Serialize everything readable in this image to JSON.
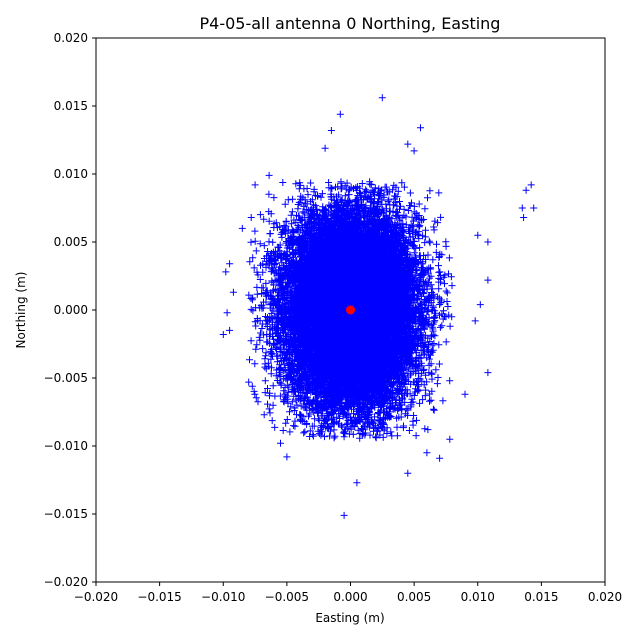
{
  "chart_data": {
    "type": "scatter",
    "title": "P4-05-all antenna 0 Northing, Easting",
    "xlabel": "Easting (m)",
    "ylabel": "Northing (m)",
    "xlim": [
      -0.02,
      0.02
    ],
    "ylim": [
      -0.02,
      0.02
    ],
    "xticks": [
      "−0.020",
      "−0.015",
      "−0.010",
      "−0.005",
      "0.000",
      "0.005",
      "0.010",
      "0.015",
      "0.020"
    ],
    "yticks": [
      "−0.020",
      "−0.015",
      "−0.010",
      "−0.005",
      "0.000",
      "0.005",
      "0.010",
      "0.015",
      "0.020"
    ],
    "grid": false,
    "series": [
      {
        "marker": "+",
        "color": "#0000ff",
        "cloud": {
          "center": [
            0.0,
            0.0
          ],
          "std": [
            0.0025,
            0.0035
          ],
          "count": 20000
        },
        "outliers": [
          [
            0.0025,
            0.0156
          ],
          [
            -0.0008,
            0.0144
          ],
          [
            0.0055,
            0.0134
          ],
          [
            -0.0015,
            0.0132
          ],
          [
            0.0045,
            0.0122
          ],
          [
            0.005,
            0.0117
          ],
          [
            -0.002,
            0.0119
          ],
          [
            -0.0064,
            0.0099
          ],
          [
            -0.0075,
            0.0092
          ],
          [
            0.0138,
            0.0088
          ],
          [
            0.0142,
            0.0092
          ],
          [
            0.0135,
            0.0075
          ],
          [
            0.0144,
            0.0075
          ],
          [
            0.0136,
            0.0068
          ],
          [
            0.0108,
            0.005
          ],
          [
            0.01,
            0.0055
          ],
          [
            0.0108,
            0.0022
          ],
          [
            0.0102,
            0.0004
          ],
          [
            0.0098,
            -0.0008
          ],
          [
            0.0108,
            -0.0046
          ],
          [
            -0.0098,
            0.0028
          ],
          [
            -0.0095,
            0.0034
          ],
          [
            -0.01,
            -0.0018
          ],
          [
            -0.0095,
            -0.0015
          ],
          [
            -0.0097,
            -0.0002
          ],
          [
            -0.0092,
            0.0013
          ],
          [
            -0.0085,
            0.006
          ],
          [
            -0.0078,
            0.0068
          ],
          [
            -0.008,
            -0.0053
          ],
          [
            0.009,
            -0.0062
          ],
          [
            0.007,
            -0.0109
          ],
          [
            -0.005,
            -0.0108
          ],
          [
            0.0005,
            -0.0127
          ],
          [
            -0.0005,
            -0.0151
          ],
          [
            0.0045,
            -0.012
          ],
          [
            0.006,
            -0.0105
          ],
          [
            0.0078,
            -0.0095
          ],
          [
            -0.0055,
            -0.0098
          ]
        ]
      },
      {
        "marker": "o",
        "color": "#ff0000",
        "points": [
          [
            0.0,
            0.0
          ]
        ]
      }
    ]
  }
}
